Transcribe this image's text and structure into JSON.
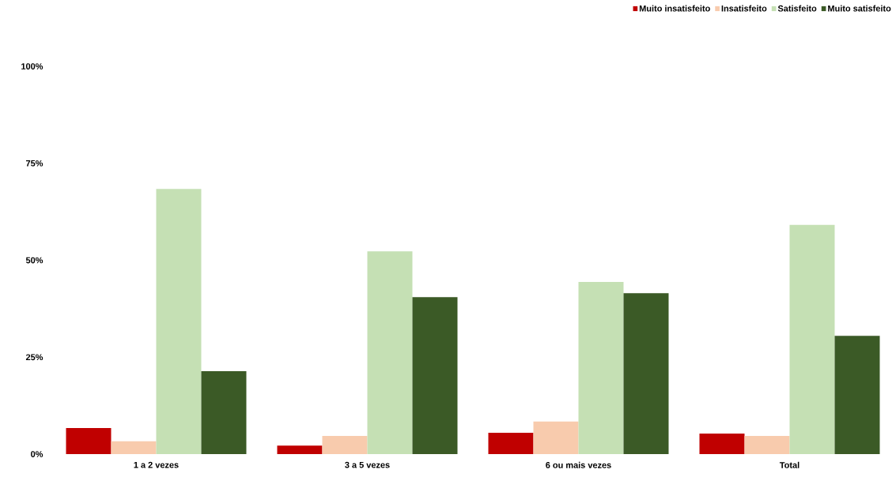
{
  "chart_data": {
    "type": "bar",
    "categories": [
      "1 a 2 vezes",
      "3 a 5 vezes",
      "6 ou mais vezes",
      "Total"
    ],
    "series": [
      {
        "name": "Muito insatisfeito",
        "color": "#c00000",
        "values": [
          6.7,
          2.2,
          5.5,
          5.3
        ]
      },
      {
        "name": "Insatisfeito",
        "color": "#f8cbad",
        "values": [
          3.3,
          4.7,
          8.4,
          4.7
        ]
      },
      {
        "name": "Satisfeito",
        "color": "#c5e0b4",
        "values": [
          68.4,
          52.3,
          44.4,
          59.1
        ]
      },
      {
        "name": "Muito satisfeito",
        "color": "#3b5a26",
        "values": [
          21.4,
          40.5,
          41.5,
          30.5
        ]
      }
    ],
    "ylim": [
      0,
      100
    ],
    "yticks": [
      {
        "value": 0,
        "label": "0%"
      },
      {
        "value": 25,
        "label": "25%"
      },
      {
        "value": 50,
        "label": "50%"
      },
      {
        "value": 75,
        "label": "75%"
      },
      {
        "value": 100,
        "label": "100%"
      }
    ],
    "grid": false,
    "legend": "top right"
  }
}
